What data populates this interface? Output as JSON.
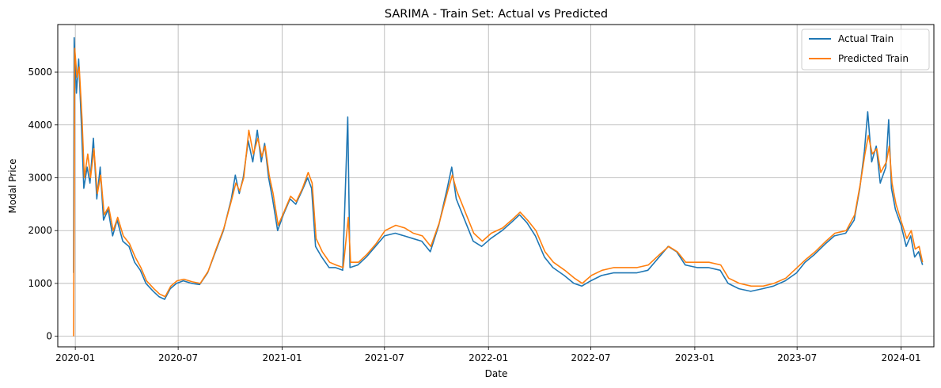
{
  "chart_data": {
    "type": "line",
    "title": "SARIMA - Train Set: Actual vs Predicted",
    "xlabel": "Date",
    "ylabel": "Modal Price",
    "xlim": [
      "2019-12-01",
      "2024-02-28"
    ],
    "ylim": [
      -200,
      5900
    ],
    "x_ticks": [
      "2020-01",
      "2020-07",
      "2021-01",
      "2021-07",
      "2022-01",
      "2022-07",
      "2023-01",
      "2023-07",
      "2024-01"
    ],
    "x_tick_dates": [
      "2020-01-01",
      "2020-07-01",
      "2021-01-01",
      "2021-07-01",
      "2022-01-01",
      "2022-07-01",
      "2023-01-01",
      "2023-07-01",
      "2024-01-01"
    ],
    "y_ticks": [
      0,
      1000,
      2000,
      3000,
      4000,
      5000
    ],
    "grid": true,
    "legend_position": "top-right",
    "series": [
      {
        "name": "Actual Train",
        "color": "#1f77b4",
        "points": [
          [
            "2019-12-29",
            1200
          ],
          [
            "2019-12-30",
            5650
          ],
          [
            "2020-01-03",
            4600
          ],
          [
            "2020-01-07",
            5250
          ],
          [
            "2020-01-12",
            3950
          ],
          [
            "2020-01-16",
            2800
          ],
          [
            "2020-01-22",
            3200
          ],
          [
            "2020-01-27",
            2900
          ],
          [
            "2020-02-02",
            3750
          ],
          [
            "2020-02-08",
            2600
          ],
          [
            "2020-02-14",
            3200
          ],
          [
            "2020-02-20",
            2200
          ],
          [
            "2020-02-28",
            2400
          ],
          [
            "2020-03-07",
            1900
          ],
          [
            "2020-03-15",
            2200
          ],
          [
            "2020-03-25",
            1800
          ],
          [
            "2020-04-05",
            1700
          ],
          [
            "2020-04-15",
            1400
          ],
          [
            "2020-04-25",
            1250
          ],
          [
            "2020-05-05",
            1000
          ],
          [
            "2020-05-18",
            850
          ],
          [
            "2020-05-28",
            750
          ],
          [
            "2020-06-07",
            700
          ],
          [
            "2020-06-17",
            900
          ],
          [
            "2020-06-28",
            1000
          ],
          [
            "2020-07-10",
            1050
          ],
          [
            "2020-07-25",
            1000
          ],
          [
            "2020-08-08",
            980
          ],
          [
            "2020-08-22",
            1200
          ],
          [
            "2020-09-05",
            1600
          ],
          [
            "2020-09-19",
            2000
          ],
          [
            "2020-10-03",
            2600
          ],
          [
            "2020-10-10",
            3050
          ],
          [
            "2020-10-17",
            2700
          ],
          [
            "2020-10-24",
            3000
          ],
          [
            "2020-11-02",
            3700
          ],
          [
            "2020-11-10",
            3300
          ],
          [
            "2020-11-18",
            3900
          ],
          [
            "2020-11-25",
            3300
          ],
          [
            "2020-12-01",
            3650
          ],
          [
            "2020-12-08",
            3000
          ],
          [
            "2020-12-15",
            2600
          ],
          [
            "2020-12-24",
            2000
          ],
          [
            "2021-01-03",
            2300
          ],
          [
            "2021-01-15",
            2600
          ],
          [
            "2021-01-25",
            2500
          ],
          [
            "2021-02-05",
            2750
          ],
          [
            "2021-02-15",
            3000
          ],
          [
            "2021-02-22",
            2800
          ],
          [
            "2021-03-01",
            1700
          ],
          [
            "2021-03-12",
            1500
          ],
          [
            "2021-03-25",
            1300
          ],
          [
            "2021-04-05",
            1300
          ],
          [
            "2021-04-18",
            1250
          ],
          [
            "2021-04-27",
            4150
          ],
          [
            "2021-05-01",
            1300
          ],
          [
            "2021-05-15",
            1350
          ],
          [
            "2021-05-30",
            1500
          ],
          [
            "2021-06-15",
            1700
          ],
          [
            "2021-07-01",
            1900
          ],
          [
            "2021-07-20",
            1950
          ],
          [
            "2021-08-05",
            1900
          ],
          [
            "2021-08-20",
            1850
          ],
          [
            "2021-09-05",
            1800
          ],
          [
            "2021-09-20",
            1600
          ],
          [
            "2021-10-05",
            2100
          ],
          [
            "2021-10-20",
            2800
          ],
          [
            "2021-10-28",
            3200
          ],
          [
            "2021-11-05",
            2600
          ],
          [
            "2021-11-20",
            2200
          ],
          [
            "2021-12-05",
            1800
          ],
          [
            "2021-12-20",
            1700
          ],
          [
            "2022-01-05",
            1850
          ],
          [
            "2022-01-25",
            2000
          ],
          [
            "2022-02-10",
            2150
          ],
          [
            "2022-02-25",
            2300
          ],
          [
            "2022-03-10",
            2150
          ],
          [
            "2022-03-25",
            1900
          ],
          [
            "2022-04-10",
            1500
          ],
          [
            "2022-04-25",
            1300
          ],
          [
            "2022-05-15",
            1150
          ],
          [
            "2022-06-01",
            1000
          ],
          [
            "2022-06-15",
            950
          ],
          [
            "2022-07-01",
            1050
          ],
          [
            "2022-07-20",
            1150
          ],
          [
            "2022-08-10",
            1200
          ],
          [
            "2022-08-30",
            1200
          ],
          [
            "2022-09-20",
            1200
          ],
          [
            "2022-10-10",
            1250
          ],
          [
            "2022-10-30",
            1500
          ],
          [
            "2022-11-15",
            1700
          ],
          [
            "2022-11-30",
            1600
          ],
          [
            "2022-12-15",
            1350
          ],
          [
            "2023-01-05",
            1300
          ],
          [
            "2023-01-25",
            1300
          ],
          [
            "2023-02-15",
            1250
          ],
          [
            "2023-03-01",
            1000
          ],
          [
            "2023-03-20",
            900
          ],
          [
            "2023-04-10",
            850
          ],
          [
            "2023-05-01",
            900
          ],
          [
            "2023-05-20",
            950
          ],
          [
            "2023-06-10",
            1050
          ],
          [
            "2023-06-30",
            1200
          ],
          [
            "2023-07-15",
            1400
          ],
          [
            "2023-08-01",
            1550
          ],
          [
            "2023-08-20",
            1750
          ],
          [
            "2023-09-05",
            1900
          ],
          [
            "2023-09-25",
            1950
          ],
          [
            "2023-10-10",
            2200
          ],
          [
            "2023-10-20",
            2800
          ],
          [
            "2023-10-28",
            3500
          ],
          [
            "2023-11-03",
            4250
          ],
          [
            "2023-11-10",
            3300
          ],
          [
            "2023-11-18",
            3600
          ],
          [
            "2023-11-25",
            2900
          ],
          [
            "2023-12-05",
            3200
          ],
          [
            "2023-12-10",
            4100
          ],
          [
            "2023-12-15",
            2800
          ],
          [
            "2023-12-22",
            2400
          ],
          [
            "2024-01-01",
            2100
          ],
          [
            "2024-01-10",
            1700
          ],
          [
            "2024-01-18",
            1900
          ],
          [
            "2024-01-25",
            1500
          ],
          [
            "2024-02-01",
            1600
          ],
          [
            "2024-02-08",
            1350
          ]
        ]
      },
      {
        "name": "Predicted Train",
        "color": "#ff7f0e",
        "points": [
          [
            "2019-12-29",
            0
          ],
          [
            "2019-12-31",
            5450
          ],
          [
            "2020-01-04",
            4900
          ],
          [
            "2020-01-08",
            5100
          ],
          [
            "2020-01-13",
            4100
          ],
          [
            "2020-01-17",
            3000
          ],
          [
            "2020-01-23",
            3450
          ],
          [
            "2020-01-28",
            3000
          ],
          [
            "2020-02-03",
            3550
          ],
          [
            "2020-02-09",
            2700
          ],
          [
            "2020-02-15",
            3050
          ],
          [
            "2020-02-21",
            2300
          ],
          [
            "2020-02-29",
            2450
          ],
          [
            "2020-03-08",
            2000
          ],
          [
            "2020-03-16",
            2250
          ],
          [
            "2020-03-26",
            1900
          ],
          [
            "2020-04-06",
            1750
          ],
          [
            "2020-04-16",
            1500
          ],
          [
            "2020-04-26",
            1300
          ],
          [
            "2020-05-06",
            1050
          ],
          [
            "2020-05-19",
            900
          ],
          [
            "2020-05-29",
            800
          ],
          [
            "2020-06-08",
            750
          ],
          [
            "2020-06-18",
            950
          ],
          [
            "2020-06-29",
            1050
          ],
          [
            "2020-07-11",
            1080
          ],
          [
            "2020-07-26",
            1030
          ],
          [
            "2020-08-09",
            1000
          ],
          [
            "2020-08-23",
            1230
          ],
          [
            "2020-09-06",
            1650
          ],
          [
            "2020-09-20",
            2050
          ],
          [
            "2020-10-04",
            2600
          ],
          [
            "2020-10-11",
            2900
          ],
          [
            "2020-10-18",
            2750
          ],
          [
            "2020-10-25",
            3000
          ],
          [
            "2020-11-03",
            3900
          ],
          [
            "2020-11-11",
            3450
          ],
          [
            "2020-11-19",
            3750
          ],
          [
            "2020-11-26",
            3400
          ],
          [
            "2020-12-02",
            3600
          ],
          [
            "2020-12-09",
            3050
          ],
          [
            "2020-12-16",
            2700
          ],
          [
            "2020-12-25",
            2100
          ],
          [
            "2021-01-04",
            2350
          ],
          [
            "2021-01-16",
            2650
          ],
          [
            "2021-01-26",
            2550
          ],
          [
            "2021-02-06",
            2800
          ],
          [
            "2021-02-16",
            3100
          ],
          [
            "2021-02-23",
            2900
          ],
          [
            "2021-03-02",
            1850
          ],
          [
            "2021-03-13",
            1600
          ],
          [
            "2021-03-26",
            1400
          ],
          [
            "2021-04-06",
            1350
          ],
          [
            "2021-04-19",
            1300
          ],
          [
            "2021-04-28",
            2250
          ],
          [
            "2021-05-02",
            1400
          ],
          [
            "2021-05-16",
            1400
          ],
          [
            "2021-05-31",
            1550
          ],
          [
            "2021-06-16",
            1750
          ],
          [
            "2021-07-02",
            2000
          ],
          [
            "2021-07-21",
            2100
          ],
          [
            "2021-08-06",
            2050
          ],
          [
            "2021-08-21",
            1950
          ],
          [
            "2021-09-06",
            1900
          ],
          [
            "2021-09-21",
            1700
          ],
          [
            "2021-10-06",
            2150
          ],
          [
            "2021-10-21",
            2750
          ],
          [
            "2021-10-29",
            3050
          ],
          [
            "2021-11-06",
            2750
          ],
          [
            "2021-11-21",
            2350
          ],
          [
            "2021-12-06",
            1950
          ],
          [
            "2021-12-21",
            1800
          ],
          [
            "2022-01-06",
            1950
          ],
          [
            "2022-01-26",
            2050
          ],
          [
            "2022-02-11",
            2200
          ],
          [
            "2022-02-26",
            2350
          ],
          [
            "2022-03-11",
            2200
          ],
          [
            "2022-03-26",
            2000
          ],
          [
            "2022-04-11",
            1600
          ],
          [
            "2022-04-26",
            1400
          ],
          [
            "2022-05-16",
            1250
          ],
          [
            "2022-06-02",
            1100
          ],
          [
            "2022-06-16",
            1000
          ],
          [
            "2022-07-02",
            1150
          ],
          [
            "2022-07-21",
            1250
          ],
          [
            "2022-08-11",
            1300
          ],
          [
            "2022-08-31",
            1300
          ],
          [
            "2022-09-21",
            1300
          ],
          [
            "2022-10-11",
            1350
          ],
          [
            "2022-10-31",
            1550
          ],
          [
            "2022-11-16",
            1700
          ],
          [
            "2022-12-01",
            1600
          ],
          [
            "2022-12-16",
            1400
          ],
          [
            "2023-01-06",
            1400
          ],
          [
            "2023-01-26",
            1400
          ],
          [
            "2023-02-16",
            1350
          ],
          [
            "2023-03-02",
            1100
          ],
          [
            "2023-03-21",
            1000
          ],
          [
            "2023-04-11",
            950
          ],
          [
            "2023-05-02",
            950
          ],
          [
            "2023-05-21",
            1000
          ],
          [
            "2023-06-11",
            1100
          ],
          [
            "2023-07-01",
            1300
          ],
          [
            "2023-07-16",
            1450
          ],
          [
            "2023-08-02",
            1600
          ],
          [
            "2023-08-21",
            1800
          ],
          [
            "2023-09-06",
            1950
          ],
          [
            "2023-09-26",
            2000
          ],
          [
            "2023-10-11",
            2300
          ],
          [
            "2023-10-21",
            2900
          ],
          [
            "2023-10-29",
            3450
          ],
          [
            "2023-11-04",
            3800
          ],
          [
            "2023-11-11",
            3450
          ],
          [
            "2023-11-19",
            3550
          ],
          [
            "2023-11-26",
            3100
          ],
          [
            "2023-12-06",
            3300
          ],
          [
            "2023-12-11",
            3600
          ],
          [
            "2023-12-16",
            2900
          ],
          [
            "2023-12-23",
            2500
          ],
          [
            "2024-01-02",
            2150
          ],
          [
            "2024-01-11",
            1850
          ],
          [
            "2024-01-19",
            2000
          ],
          [
            "2024-01-26",
            1650
          ],
          [
            "2024-02-02",
            1700
          ],
          [
            "2024-02-08",
            1400
          ]
        ]
      }
    ]
  }
}
